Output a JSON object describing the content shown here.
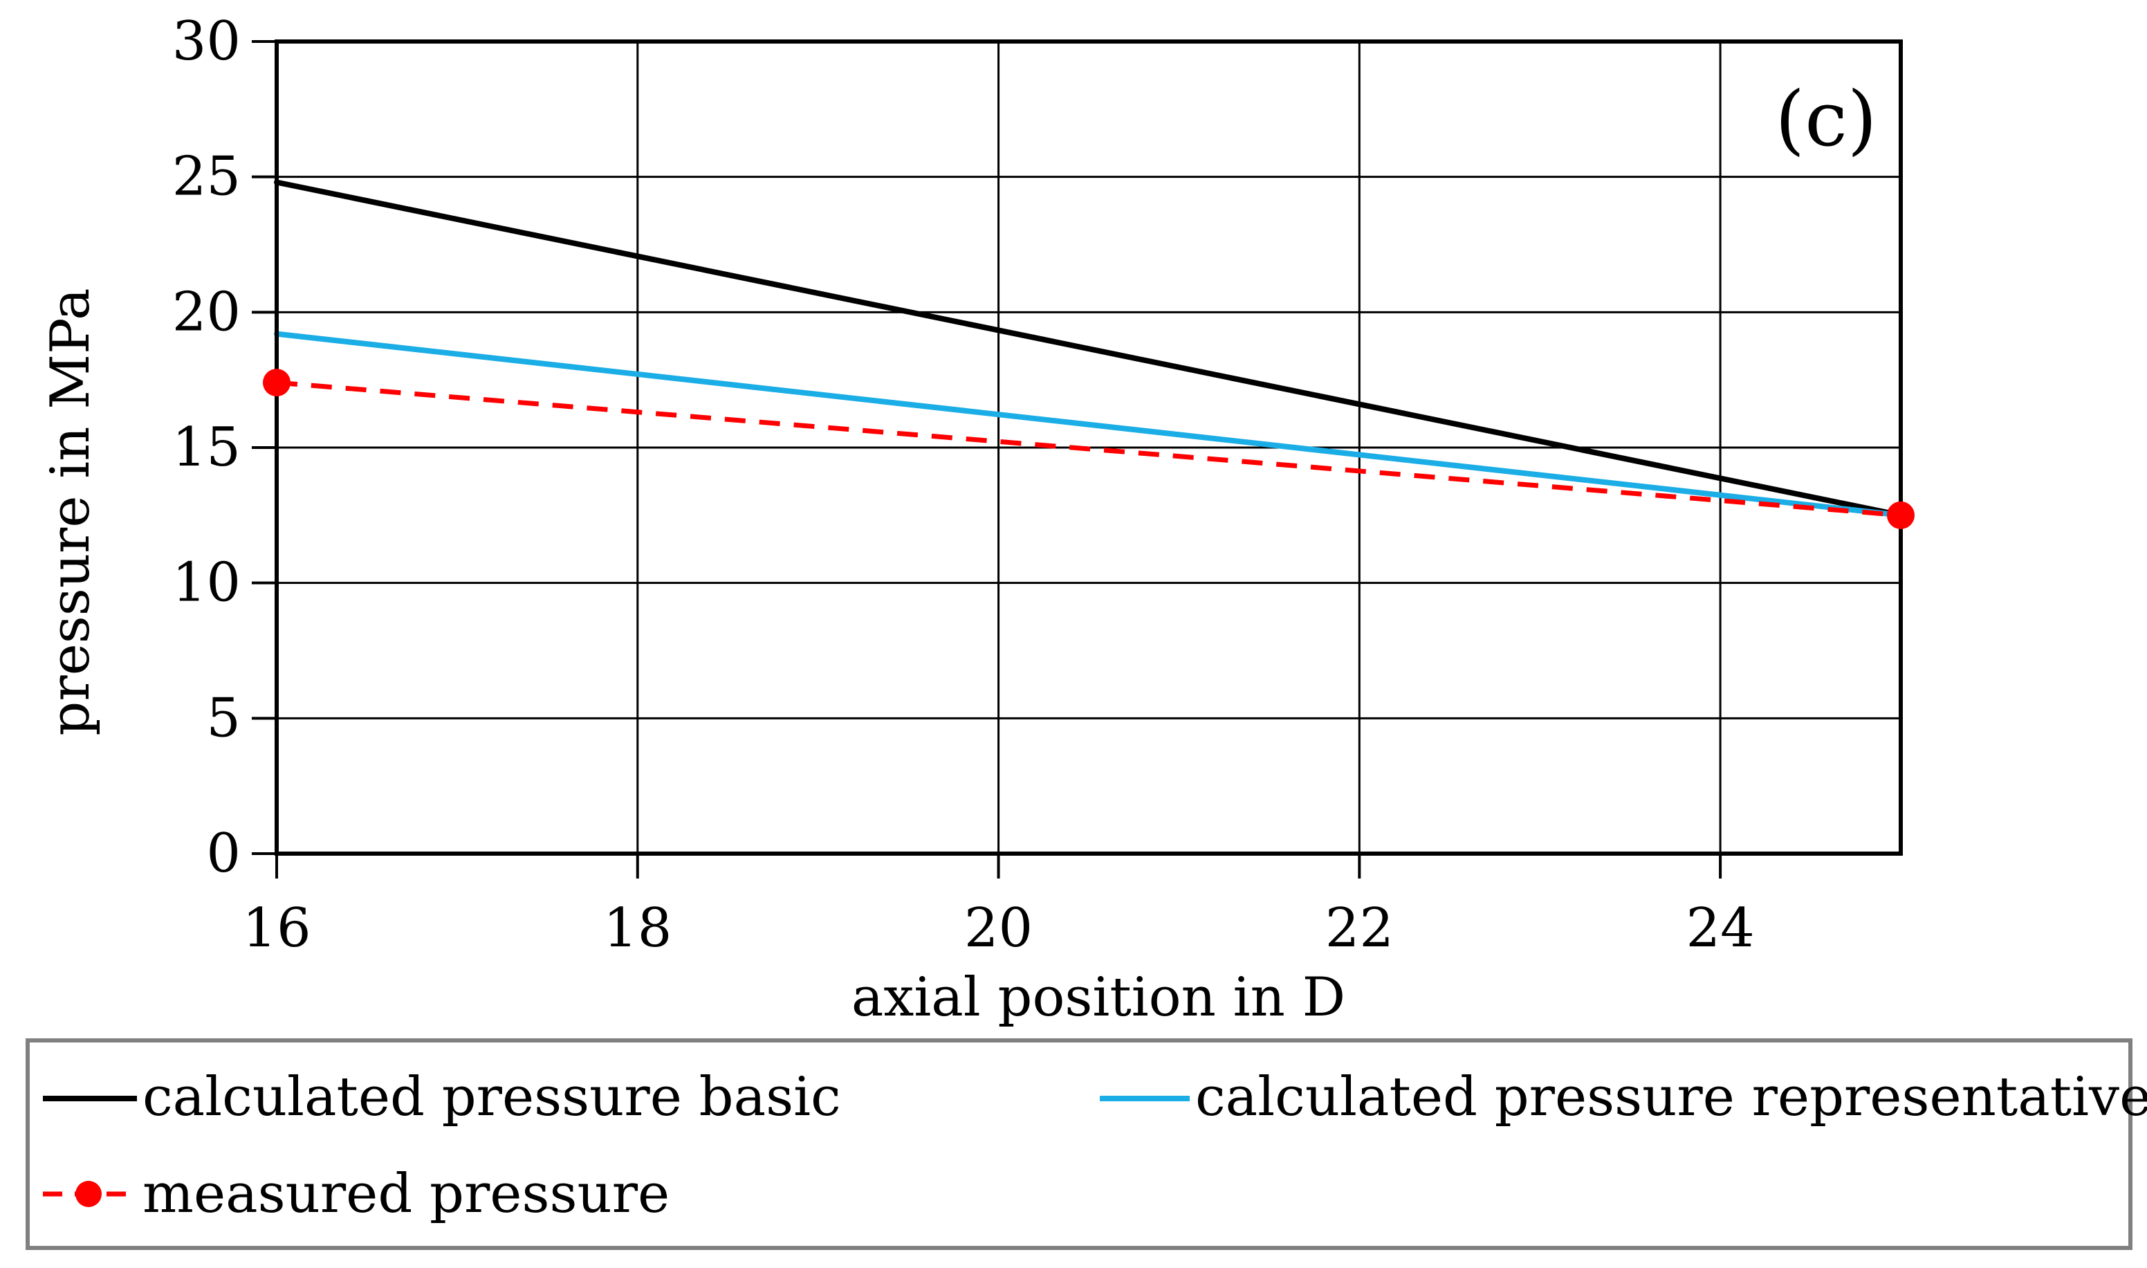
{
  "chart_data": {
    "type": "line",
    "panel_label": "(c)",
    "xlabel": "axial position in D",
    "ylabel": "pressure in MPa",
    "xlim": [
      16,
      25
    ],
    "ylim": [
      0,
      30
    ],
    "x_ticks": [
      "16",
      "18",
      "20",
      "22",
      "24"
    ],
    "y_ticks": [
      "0",
      "5",
      "10",
      "15",
      "20",
      "25",
      "30"
    ],
    "grid": true,
    "legend_position": "bottom",
    "series": [
      {
        "name": "calculated pressure basic",
        "color": "#000000",
        "style": "solid",
        "markers": false,
        "x": [
          16,
          25
        ],
        "y": [
          24.8,
          12.5
        ]
      },
      {
        "name": "calculated pressure representative",
        "color": "#1BADE6",
        "style": "solid",
        "markers": false,
        "x": [
          16,
          25
        ],
        "y": [
          19.2,
          12.5
        ]
      },
      {
        "name": "measured pressure",
        "color": "#FF0000",
        "style": "dashed",
        "markers": true,
        "x": [
          16,
          25
        ],
        "y": [
          17.4,
          12.5
        ]
      }
    ]
  }
}
